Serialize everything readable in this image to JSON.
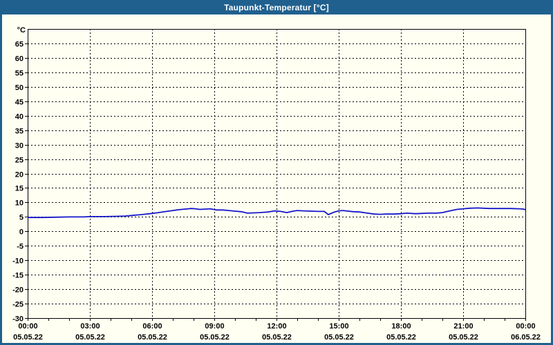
{
  "window": {
    "title": "Taupunkt-Temperatur [°C]"
  },
  "colors": {
    "titlebar": "#20608e",
    "frame": "#20608e",
    "panel_background": "#fffff2",
    "plot_border": "#000000",
    "gridline": "#000000",
    "tick_text": "#000000",
    "title_text": "#ffffff",
    "series_line": "#1515cd"
  },
  "chart_data": {
    "type": "line",
    "title": "Taupunkt-Temperatur [°C]",
    "ylabel_unit": "°C",
    "ylim": [
      -30,
      70
    ],
    "y_tick_min": -30,
    "y_tick_max": 65,
    "y_tick_step": 5,
    "xlim_hours": [
      0,
      24
    ],
    "x_minor_tick_hours": 1,
    "grid": true,
    "grid_style": "dashed",
    "legend": "none",
    "x_ticks": [
      {
        "time": "00:00",
        "date": "05.05.22",
        "hour": 0
      },
      {
        "time": "03:00",
        "date": "05.05.22",
        "hour": 3
      },
      {
        "time": "06:00",
        "date": "05.05.22",
        "hour": 6
      },
      {
        "time": "09:00",
        "date": "05.05.22",
        "hour": 9
      },
      {
        "time": "12:00",
        "date": "05.05.22",
        "hour": 12
      },
      {
        "time": "15:00",
        "date": "05.05.22",
        "hour": 15
      },
      {
        "time": "18:00",
        "date": "05.05.22",
        "hour": 18
      },
      {
        "time": "21:00",
        "date": "05.05.22",
        "hour": 21
      },
      {
        "time": "00:00",
        "date": "06.05.22",
        "hour": 24
      }
    ],
    "series": [
      {
        "name": "Taupunkt-Temperatur",
        "color": "#1515cd",
        "points": [
          [
            0,
            4.8
          ],
          [
            0.7,
            4.8
          ],
          [
            1.3,
            4.9
          ],
          [
            2,
            5.0
          ],
          [
            2.7,
            5.0
          ],
          [
            3,
            5.1
          ],
          [
            3.7,
            5.1
          ],
          [
            4.3,
            5.2
          ],
          [
            4.7,
            5.3
          ],
          [
            5,
            5.5
          ],
          [
            5.5,
            5.8
          ],
          [
            6,
            6.2
          ],
          [
            6.3,
            6.5
          ],
          [
            6.7,
            6.9
          ],
          [
            7,
            7.2
          ],
          [
            7.3,
            7.5
          ],
          [
            7.6,
            7.7
          ],
          [
            7.9,
            7.9
          ],
          [
            8.1,
            7.8
          ],
          [
            8.3,
            7.6
          ],
          [
            8.6,
            7.7
          ],
          [
            8.8,
            7.8
          ],
          [
            9.1,
            7.4
          ],
          [
            9.4,
            7.4
          ],
          [
            9.7,
            7.2
          ],
          [
            10,
            7.0
          ],
          [
            10.3,
            6.8
          ],
          [
            10.6,
            6.3
          ],
          [
            10.9,
            6.4
          ],
          [
            11.2,
            6.5
          ],
          [
            11.6,
            6.7
          ],
          [
            11.9,
            7.1
          ],
          [
            12.2,
            6.9
          ],
          [
            12.5,
            6.5
          ],
          [
            12.8,
            7.0
          ],
          [
            13,
            7.2
          ],
          [
            13.3,
            7.1
          ],
          [
            13.7,
            7.0
          ],
          [
            14,
            6.9
          ],
          [
            14.3,
            6.9
          ],
          [
            14.5,
            5.8
          ],
          [
            14.8,
            6.7
          ],
          [
            15,
            7.1
          ],
          [
            15.2,
            7.2
          ],
          [
            15.7,
            6.8
          ],
          [
            16,
            6.7
          ],
          [
            16.3,
            6.4
          ],
          [
            16.7,
            6.0
          ],
          [
            17,
            5.9
          ],
          [
            17.3,
            6.0
          ],
          [
            17.7,
            6.0
          ],
          [
            18,
            6.1
          ],
          [
            18.3,
            6.3
          ],
          [
            18.7,
            6.1
          ],
          [
            19,
            6.2
          ],
          [
            19.3,
            6.3
          ],
          [
            19.7,
            6.3
          ],
          [
            20,
            6.5
          ],
          [
            20.3,
            7.0
          ],
          [
            20.7,
            7.6
          ],
          [
            21,
            7.8
          ],
          [
            21.3,
            8.0
          ],
          [
            21.7,
            8.1
          ],
          [
            22,
            8.0
          ],
          [
            22.3,
            7.9
          ],
          [
            22.7,
            7.9
          ],
          [
            23,
            7.9
          ],
          [
            23.3,
            7.9
          ],
          [
            23.7,
            7.8
          ],
          [
            23.9,
            7.7
          ],
          [
            24,
            7.5
          ]
        ]
      }
    ]
  }
}
